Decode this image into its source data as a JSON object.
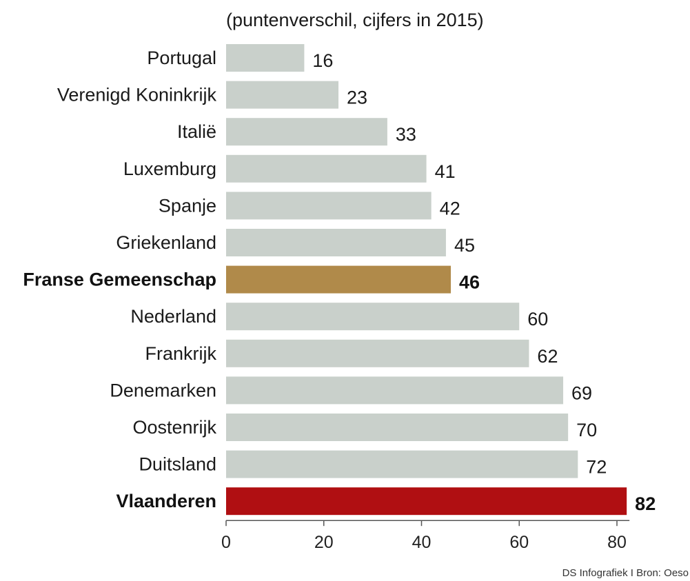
{
  "chart_data": {
    "type": "bar",
    "orientation": "horizontal",
    "subtitle": "(puntenverschil, cijfers in 2015)",
    "source": "DS Infografiek I Bron: Oeso",
    "categories": [
      "Portugal",
      "Verenigd Koninkrijk",
      "Italië",
      "Luxemburg",
      "Spanje",
      "Griekenland",
      "Franse Gemeenschap",
      "Nederland",
      "Frankrijk",
      "Denemarken",
      "Oostenrijk",
      "Duitsland",
      "Vlaanderen"
    ],
    "values": [
      16,
      23,
      33,
      41,
      42,
      45,
      46,
      60,
      62,
      69,
      70,
      72,
      82
    ],
    "value_labels": [
      "16",
      "23",
      "33",
      "41",
      "42",
      "45",
      "46",
      "60",
      "62",
      "69",
      "70",
      "72",
      "82"
    ],
    "highlight": {
      "Franse Gemeenschap": "#b08a4a",
      "Vlaanderen": "#b00f12"
    },
    "default_color": "#c9d0cb",
    "xlim": [
      0,
      82
    ],
    "xticks": [
      0,
      20,
      40,
      60,
      80
    ],
    "xtick_labels": [
      "0",
      "20",
      "40",
      "60",
      "80"
    ],
    "grid": false
  }
}
